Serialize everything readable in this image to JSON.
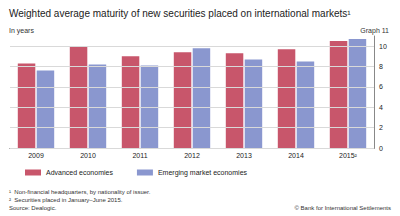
{
  "chart_data": {
    "type": "bar",
    "title": "Weighted average maturity of new securities placed on international markets¹",
    "subtitle": "In years",
    "graph_label": "Graph 11",
    "categories": [
      "2009",
      "2010",
      "2011",
      "2012",
      "2013",
      "2014",
      "2015²"
    ],
    "series": [
      {
        "name": "Advanced economies",
        "color": "#c8566b",
        "values": [
          8.3,
          10.0,
          9.0,
          9.4,
          9.3,
          9.7,
          10.5
        ]
      },
      {
        "name": "Emerging market economies",
        "color": "#8a97cf",
        "values": [
          7.6,
          8.2,
          8.1,
          9.8,
          8.7,
          8.5,
          10.7
        ]
      }
    ],
    "ylim": [
      0,
      11
    ],
    "yticks": [
      0,
      2,
      4,
      6,
      8,
      10
    ],
    "grid": true,
    "legend": "bottom",
    "notes": [
      "¹  Non-financial headquarters, by nationality of issuer.",
      "²  Securities placed in January–June 2015."
    ],
    "source": "Source: Dealogic.",
    "copyright": "© Bank for International Settlements"
  }
}
